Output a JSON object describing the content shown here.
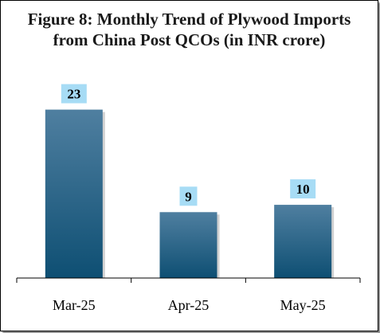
{
  "chart_data": {
    "type": "bar",
    "title": "Figure 8: Monthly Trend of Plywood Imports from China Post QCOs (in INR crore)",
    "xlabel": "",
    "ylabel": "",
    "categories": [
      "Mar-25",
      "Apr-25",
      "May-25"
    ],
    "values": [
      23,
      9,
      10
    ],
    "data_labels": [
      "23",
      "9",
      "10"
    ],
    "ylim": [
      0,
      23.5
    ],
    "grid": false,
    "legend": "none",
    "colors": {
      "bar_top": "#4f7fa0",
      "bar_bottom": "#0e4f73",
      "label_box": "#a7dcf5",
      "axis": "#000000"
    }
  }
}
